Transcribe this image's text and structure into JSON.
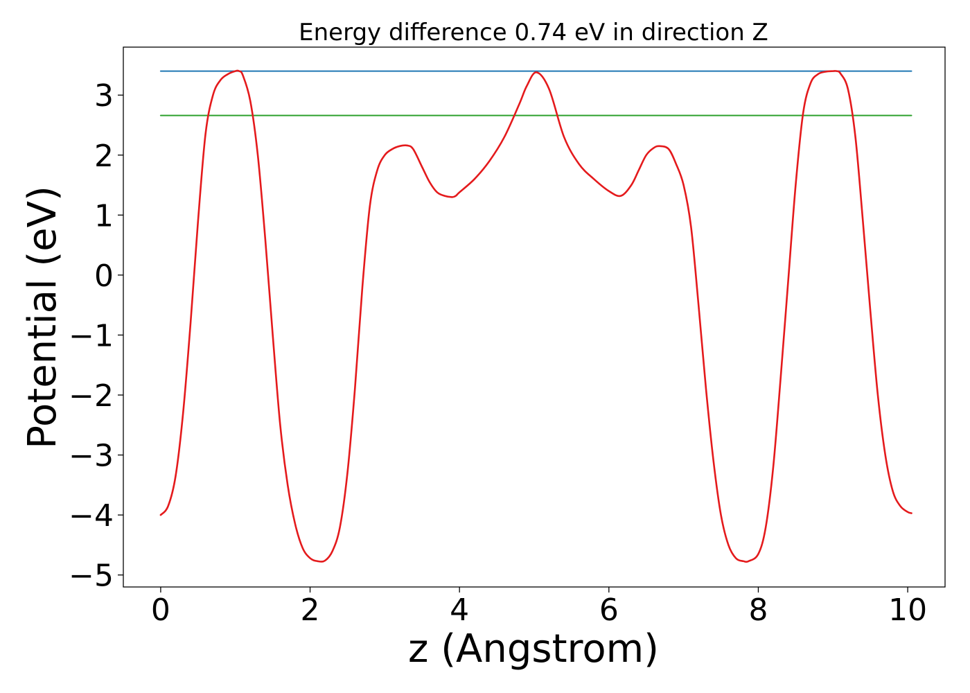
{
  "chart_data": {
    "type": "line",
    "title": "Energy difference 0.74 eV in direction Z",
    "xlabel": "z (Angstrom)",
    "ylabel": "Potential (eV)",
    "xlim": [
      -0.5,
      10.5
    ],
    "ylim": [
      -5.2,
      3.8
    ],
    "xticks": [
      0,
      2,
      4,
      6,
      8,
      10
    ],
    "yticks": [
      -5,
      -4,
      -3,
      -2,
      -1,
      0,
      1,
      2,
      3
    ],
    "xtick_labels": [
      "0",
      "2",
      "4",
      "6",
      "8",
      "10"
    ],
    "ytick_labels": [
      "−5",
      "−4",
      "−3",
      "−2",
      "−1",
      "0",
      "1",
      "2",
      "3"
    ],
    "grid": false,
    "series": [
      {
        "color": "#1f77b4",
        "x": [
          0,
          10.05
        ],
        "y": [
          3.4,
          3.4
        ]
      },
      {
        "color": "#2ca02c",
        "x": [
          0,
          10.05
        ],
        "y": [
          2.66,
          2.66
        ]
      },
      {
        "color": "#e41a1c",
        "x": [
          0,
          0.1,
          0.2,
          0.3,
          0.4,
          0.5,
          0.6,
          0.7,
          0.8,
          0.9,
          1.0,
          1.05,
          1.1,
          1.2,
          1.3,
          1.4,
          1.5,
          1.6,
          1.7,
          1.8,
          1.9,
          2.0,
          2.1,
          2.2,
          2.3,
          2.4,
          2.5,
          2.6,
          2.7,
          2.8,
          2.9,
          3.0,
          3.1,
          3.2,
          3.3,
          3.38,
          3.5,
          3.6,
          3.7,
          3.8,
          3.9,
          3.95,
          4.0,
          4.2,
          4.4,
          4.6,
          4.8,
          4.9,
          5.03,
          5.2,
          5.4,
          5.6,
          5.8,
          6.0,
          6.16,
          6.3,
          6.4,
          6.5,
          6.6,
          6.68,
          6.8,
          6.9,
          7.0,
          7.1,
          7.2,
          7.3,
          7.4,
          7.5,
          7.6,
          7.7,
          7.8,
          7.87,
          8.0,
          8.1,
          8.2,
          8.3,
          8.4,
          8.5,
          8.6,
          8.7,
          8.8,
          8.9,
          9.0,
          9.05,
          9.1,
          9.2,
          9.3,
          9.4,
          9.5,
          9.6,
          9.7,
          9.8,
          9.9,
          10.0,
          10.05
        ],
        "y": [
          -4.0,
          -3.85,
          -3.35,
          -2.3,
          -0.8,
          0.9,
          2.35,
          3.0,
          3.25,
          3.35,
          3.4,
          3.4,
          3.33,
          2.9,
          2.0,
          0.6,
          -1.0,
          -2.5,
          -3.5,
          -4.15,
          -4.55,
          -4.72,
          -4.77,
          -4.76,
          -4.6,
          -4.2,
          -3.3,
          -1.9,
          -0.2,
          1.15,
          1.75,
          2.0,
          2.1,
          2.15,
          2.16,
          2.1,
          1.8,
          1.55,
          1.38,
          1.32,
          1.3,
          1.32,
          1.38,
          1.6,
          1.9,
          2.3,
          2.85,
          3.15,
          3.38,
          3.1,
          2.3,
          1.85,
          1.6,
          1.4,
          1.32,
          1.5,
          1.75,
          2.0,
          2.12,
          2.15,
          2.1,
          1.85,
          1.5,
          0.8,
          -0.5,
          -1.9,
          -3.1,
          -4.0,
          -4.5,
          -4.72,
          -4.77,
          -4.77,
          -4.65,
          -4.2,
          -3.2,
          -1.7,
          -0.1,
          1.5,
          2.7,
          3.2,
          3.35,
          3.39,
          3.4,
          3.4,
          3.36,
          3.1,
          2.3,
          0.9,
          -0.6,
          -2.0,
          -3.0,
          -3.6,
          -3.85,
          -3.95,
          -3.97
        ]
      }
    ]
  }
}
